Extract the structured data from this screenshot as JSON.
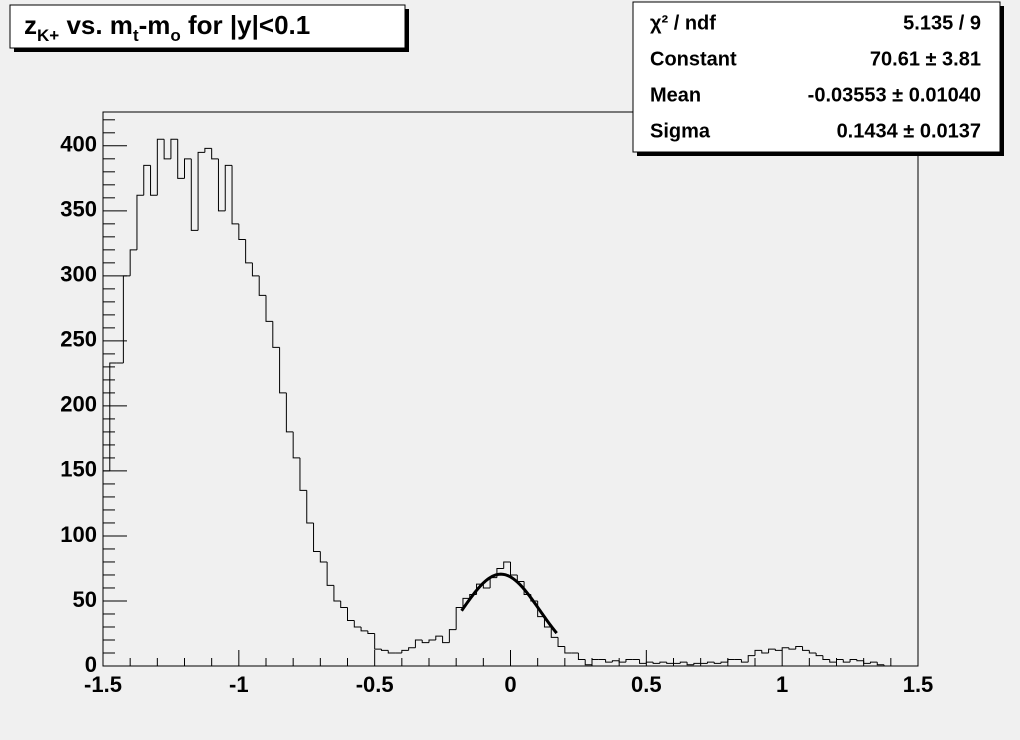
{
  "chart_data": {
    "type": "histogram",
    "title_parts": [
      {
        "text": "z"
      },
      {
        "text": "K+",
        "sub": true
      },
      {
        "text": " vs. m"
      },
      {
        "text": "t",
        "sub": true
      },
      {
        "text": "-m"
      },
      {
        "text": "o",
        "sub": true
      },
      {
        "text": " for |y|<0.1"
      }
    ],
    "bins": [
      -1.5,
      -1.475,
      -1.45,
      -1.425,
      -1.4,
      -1.375,
      -1.35,
      -1.325,
      -1.3,
      -1.275,
      -1.25,
      -1.225,
      -1.2,
      -1.175,
      -1.15,
      -1.125,
      -1.1,
      -1.075,
      -1.05,
      -1.025,
      -1,
      -0.975,
      -0.95,
      -0.925,
      -0.9,
      -0.875,
      -0.85,
      -0.825,
      -0.8,
      -0.775,
      -0.75,
      -0.725,
      -0.7,
      -0.675,
      -0.65,
      -0.625,
      -0.6,
      -0.575,
      -0.55,
      -0.525,
      -0.5,
      -0.475,
      -0.45,
      -0.425,
      -0.4,
      -0.375,
      -0.35,
      -0.325,
      -0.3,
      -0.275,
      -0.25,
      -0.225,
      -0.2,
      -0.175,
      -0.15,
      -0.125,
      -0.1,
      -0.075,
      -0.05,
      -0.025,
      0,
      0.025,
      0.05,
      0.075,
      0.1,
      0.125,
      0.15,
      0.175,
      0.2,
      0.225,
      0.25,
      0.275,
      0.3,
      0.325,
      0.35,
      0.375,
      0.4,
      0.425,
      0.45,
      0.475,
      0.5,
      0.525,
      0.55,
      0.575,
      0.6,
      0.625,
      0.65,
      0.675,
      0.7,
      0.725,
      0.75,
      0.775,
      0.8,
      0.825,
      0.85,
      0.875,
      0.9,
      0.925,
      0.95,
      0.975,
      1,
      1.025,
      1.05,
      1.075,
      1.1,
      1.125,
      1.15,
      1.175,
      1.2,
      1.225,
      1.25,
      1.275,
      1.3,
      1.325,
      1.35,
      1.375,
      1.4,
      1.425,
      1.45,
      1.475,
      1.5
    ],
    "values": [
      150,
      233,
      233,
      300,
      320,
      362,
      385,
      362,
      405,
      390,
      405,
      375,
      390,
      335,
      395,
      398,
      390,
      350,
      385,
      340,
      328,
      310,
      300,
      285,
      265,
      245,
      210,
      180,
      160,
      135,
      110,
      88,
      80,
      62,
      50,
      45,
      35,
      30,
      27,
      25,
      13,
      12,
      10,
      10,
      12,
      14,
      20,
      18,
      20,
      23,
      18,
      28,
      45,
      52,
      55,
      63,
      60,
      68,
      75,
      80,
      70,
      65,
      55,
      50,
      38,
      30,
      22,
      15,
      10,
      10,
      5,
      1,
      5,
      5,
      3,
      4,
      3,
      5,
      5,
      2,
      3,
      2,
      3,
      2,
      2,
      3,
      1,
      2,
      2,
      3,
      2,
      3,
      5,
      5,
      3,
      8,
      12,
      10,
      13,
      12,
      14,
      13,
      15,
      12,
      10,
      8,
      5,
      3,
      5,
      3,
      5,
      4,
      2,
      3,
      1,
      0,
      0,
      0,
      0,
      0
    ],
    "color": "#000000",
    "xlim": [
      -1.5,
      1.5
    ],
    "xticks": [
      -1.5,
      -1,
      -0.5,
      0,
      0.5,
      1,
      1.5
    ],
    "ylim": [
      0,
      426
    ],
    "yticks": [
      0,
      50,
      100,
      150,
      200,
      250,
      300,
      350,
      400
    ],
    "fit": {
      "constant": 70.61,
      "mean": -0.03553,
      "sigma": 0.1434,
      "xrange": [
        -0.18,
        0.17
      ],
      "color": "#000000"
    },
    "stats": [
      {
        "label": "χ² / ndf",
        "text": "5.135 / 9"
      },
      {
        "label": "Constant",
        "text": "70.61 ± 3.81"
      },
      {
        "label": "Mean",
        "text": "-0.03553 ± 0.01040"
      },
      {
        "label": "Sigma",
        "text": "0.1434 ± 0.0137"
      }
    ]
  }
}
